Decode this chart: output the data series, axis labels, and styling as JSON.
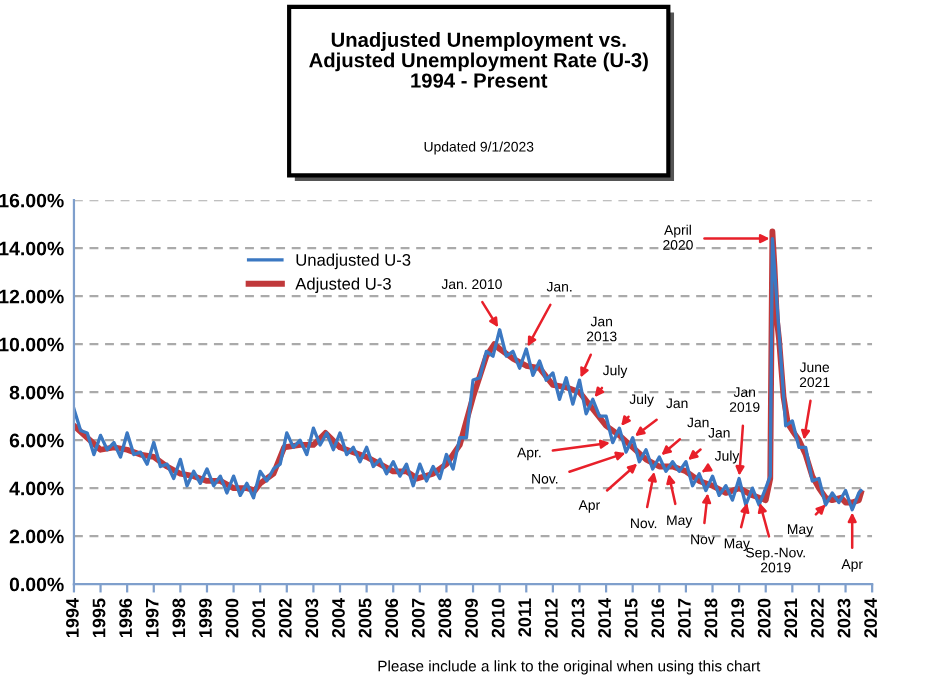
{
  "chart_data": {
    "type": "line",
    "title": "Unadjusted Unemployment vs.\nAdjusted Unemployment Rate (U-3)\n1994 - Present",
    "subtitle": "Updated 9/1/2023",
    "series": [
      {
        "name": "Unadjusted U-3",
        "color": "#3b78c2",
        "x": [
          1994.0,
          1994.25,
          1994.5,
          1994.75,
          1995.0,
          1995.25,
          1995.5,
          1995.75,
          1996.0,
          1996.25,
          1996.5,
          1996.75,
          1997.0,
          1997.25,
          1997.5,
          1997.75,
          1998.0,
          1998.25,
          1998.5,
          1998.75,
          1999.0,
          1999.25,
          1999.5,
          1999.75,
          2000.0,
          2000.25,
          2000.5,
          2000.75,
          2001.0,
          2001.25,
          2001.5,
          2001.75,
          2002.0,
          2002.25,
          2002.5,
          2002.75,
          2003.0,
          2003.25,
          2003.5,
          2003.75,
          2004.0,
          2004.25,
          2004.5,
          2004.75,
          2005.0,
          2005.25,
          2005.5,
          2005.75,
          2006.0,
          2006.25,
          2006.5,
          2006.75,
          2007.0,
          2007.25,
          2007.5,
          2007.75,
          2008.0,
          2008.25,
          2008.5,
          2008.75,
          2009.0,
          2009.25,
          2009.5,
          2009.75,
          2010.0,
          2010.25,
          2010.5,
          2010.75,
          2011.0,
          2011.25,
          2011.5,
          2011.75,
          2012.0,
          2012.25,
          2012.5,
          2012.75,
          2013.0,
          2013.25,
          2013.5,
          2013.75,
          2014.0,
          2014.25,
          2014.5,
          2014.75,
          2015.0,
          2015.25,
          2015.5,
          2015.75,
          2016.0,
          2016.25,
          2016.5,
          2016.75,
          2017.0,
          2017.25,
          2017.5,
          2017.75,
          2018.0,
          2018.25,
          2018.5,
          2018.75,
          2019.0,
          2019.25,
          2019.5,
          2019.75,
          2020.0,
          2020.17,
          2020.25,
          2020.5,
          2020.75,
          2021.0,
          2021.25,
          2021.5,
          2021.75,
          2022.0,
          2022.25,
          2022.5,
          2022.75,
          2023.0,
          2023.25,
          2023.5,
          2023.58
        ],
        "values": [
          7.3,
          6.4,
          6.3,
          5.4,
          6.2,
          5.6,
          5.9,
          5.3,
          6.3,
          5.4,
          5.5,
          5.0,
          5.9,
          4.9,
          5.0,
          4.4,
          5.2,
          4.1,
          4.7,
          4.2,
          4.8,
          4.1,
          4.5,
          3.8,
          4.5,
          3.7,
          4.2,
          3.6,
          4.7,
          4.3,
          4.8,
          5.0,
          6.3,
          5.7,
          6.0,
          5.4,
          6.5,
          5.8,
          6.3,
          5.6,
          6.3,
          5.4,
          5.7,
          5.1,
          5.7,
          4.9,
          5.2,
          4.6,
          5.1,
          4.5,
          5.0,
          4.1,
          5.0,
          4.3,
          4.9,
          4.4,
          5.4,
          4.8,
          6.1,
          6.1,
          8.5,
          8.6,
          9.7,
          9.5,
          10.6,
          9.5,
          9.7,
          9.0,
          9.8,
          8.7,
          9.3,
          8.5,
          8.8,
          7.7,
          8.6,
          7.5,
          8.5,
          7.1,
          7.7,
          7.0,
          7.0,
          5.9,
          6.5,
          5.5,
          6.1,
          5.1,
          5.6,
          4.8,
          5.3,
          4.7,
          5.1,
          4.7,
          5.1,
          4.1,
          4.6,
          3.9,
          4.5,
          3.7,
          4.1,
          3.5,
          4.4,
          3.3,
          4.0,
          3.3,
          4.0,
          4.5,
          14.4,
          10.5,
          6.6,
          6.8,
          5.7,
          5.7,
          4.3,
          4.4,
          3.3,
          3.8,
          3.4,
          3.9,
          3.1,
          3.8,
          3.9
        ]
      },
      {
        "name": "Adjusted U-3",
        "color": "#c0393b",
        "x": [
          1994.0,
          1994.5,
          1995.0,
          1995.5,
          1996.0,
          1996.5,
          1997.0,
          1997.5,
          1998.0,
          1998.5,
          1999.0,
          1999.5,
          2000.0,
          2000.5,
          2000.8,
          2001.0,
          2001.5,
          2001.9,
          2002.5,
          2003.0,
          2003.45,
          2004.0,
          2004.5,
          2005.0,
          2005.5,
          2006.0,
          2006.5,
          2006.9,
          2007.5,
          2008.0,
          2008.5,
          2009.0,
          2009.5,
          2009.8,
          2010.0,
          2010.5,
          2011.0,
          2011.5,
          2012.0,
          2012.5,
          2013.0,
          2013.5,
          2014.0,
          2014.5,
          2015.0,
          2015.5,
          2016.0,
          2016.5,
          2017.0,
          2017.5,
          2018.0,
          2018.5,
          2019.0,
          2019.5,
          2020.0,
          2020.17,
          2020.25,
          2020.33,
          2020.42,
          2020.5,
          2020.67,
          2020.83,
          2021.0,
          2021.25,
          2021.5,
          2021.75,
          2022.0,
          2022.25,
          2022.5,
          2022.83,
          2023.0,
          2023.25,
          2023.5,
          2023.58
        ],
        "values": [
          6.6,
          6.1,
          5.6,
          5.7,
          5.6,
          5.4,
          5.3,
          4.9,
          4.6,
          4.5,
          4.3,
          4.3,
          4.0,
          4.0,
          3.9,
          4.2,
          4.6,
          5.7,
          5.8,
          5.8,
          6.3,
          5.7,
          5.5,
          5.3,
          5.0,
          4.7,
          4.7,
          4.4,
          4.6,
          5.0,
          5.8,
          7.8,
          9.5,
          10.0,
          9.8,
          9.4,
          9.1,
          9.0,
          8.3,
          8.2,
          8.0,
          7.3,
          6.6,
          6.2,
          5.7,
          5.2,
          4.9,
          4.9,
          4.7,
          4.3,
          4.1,
          3.8,
          4.0,
          3.7,
          3.5,
          4.4,
          14.7,
          13.2,
          11.0,
          10.2,
          7.8,
          6.7,
          6.4,
          6.0,
          5.4,
          4.5,
          4.0,
          3.6,
          3.5,
          3.6,
          3.4,
          3.4,
          3.5,
          3.8
        ]
      }
    ],
    "xlim": [
      1994,
      2024
    ],
    "xticks": [
      1994,
      1995,
      1996,
      1997,
      1998,
      1999,
      2000,
      2001,
      2002,
      2003,
      2004,
      2005,
      2006,
      2007,
      2008,
      2009,
      2010,
      2011,
      2012,
      2013,
      2014,
      2015,
      2016,
      2017,
      2018,
      2019,
      2020,
      2021,
      2022,
      2023,
      2024
    ],
    "ylim": [
      0,
      16
    ],
    "yticks": [
      {
        "value": 0,
        "label": "0.00%"
      },
      {
        "value": 2,
        "label": "2.00%"
      },
      {
        "value": 4,
        "label": "4.00%"
      },
      {
        "value": 6,
        "label": "6.00%"
      },
      {
        "value": 8,
        "label": "8.00%"
      },
      {
        "value": 10,
        "label": "10.00%"
      },
      {
        "value": 12,
        "label": "12.00%"
      },
      {
        "value": 14,
        "label": "14.00%"
      },
      {
        "value": 16,
        "label": "16.00%"
      }
    ],
    "grid": "y",
    "legend": "top left",
    "annotations": [
      {
        "text": "Jan. 2010",
        "x": 2010.0,
        "y": 10.6
      },
      {
        "text": "Jan.",
        "x": 2011.0,
        "y": 9.8
      },
      {
        "text": "Jan\n2013",
        "x": 2013.0,
        "y": 8.5
      },
      {
        "text": "July",
        "x": 2013.5,
        "y": 7.7
      },
      {
        "text": "July",
        "x": 2014.5,
        "y": 6.5
      },
      {
        "text": "Apr.",
        "x": 2014.25,
        "y": 5.9
      },
      {
        "text": "Nov.",
        "x": 2014.83,
        "y": 5.5
      },
      {
        "text": "Jan",
        "x": 2015.0,
        "y": 6.1
      },
      {
        "text": "Apr",
        "x": 2015.25,
        "y": 5.1
      },
      {
        "text": "Nov.",
        "x": 2015.83,
        "y": 4.8
      },
      {
        "text": "Jan",
        "x": 2016.0,
        "y": 5.3
      },
      {
        "text": "May",
        "x": 2016.33,
        "y": 4.7
      },
      {
        "text": "Jan",
        "x": 2017.0,
        "y": 5.1
      },
      {
        "text": "July",
        "x": 2017.5,
        "y": 4.6
      },
      {
        "text": "Nov",
        "x": 2017.83,
        "y": 3.9
      },
      {
        "text": "Jan\n2019",
        "x": 2019.0,
        "y": 4.4
      },
      {
        "text": "May",
        "x": 2019.33,
        "y": 3.5
      },
      {
        "text": "April\n2020",
        "x": 2020.25,
        "y": 14.4
      },
      {
        "text": "Sep.-Nov.\n2019",
        "x": 2019.75,
        "y": 3.5
      },
      {
        "text": "June\n2021",
        "x": 2021.42,
        "y": 5.9
      },
      {
        "text": "May",
        "x": 2022.33,
        "y": 3.4
      },
      {
        "text": "Apr",
        "x": 2023.25,
        "y": 3.1
      },
      "Please include a link to the original when using this chart"
    ]
  }
}
